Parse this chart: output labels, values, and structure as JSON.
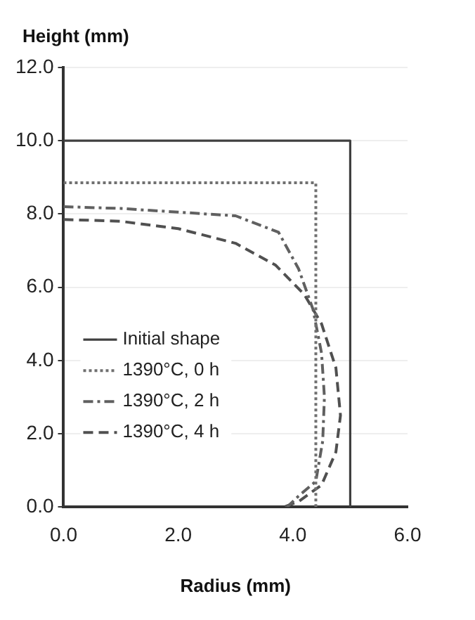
{
  "chart_data": {
    "type": "line",
    "xlabel": "Radius (mm)",
    "ylabel": "Height (mm)",
    "xlim": [
      0,
      6
    ],
    "ylim": [
      0,
      12
    ],
    "xticks": [
      {
        "value": 0,
        "label": "0.0"
      },
      {
        "value": 2,
        "label": "2.0"
      },
      {
        "value": 4,
        "label": "4.0"
      },
      {
        "value": 6,
        "label": "6.0"
      }
    ],
    "yticks": [
      {
        "value": 0,
        "label": "0.0"
      },
      {
        "value": 2,
        "label": "2.0"
      },
      {
        "value": 4,
        "label": "4.0"
      },
      {
        "value": 6,
        "label": "6.0"
      },
      {
        "value": 8,
        "label": "8.0"
      },
      {
        "value": 10,
        "label": "10.0"
      },
      {
        "value": 12,
        "label": "12.0"
      }
    ],
    "grid": "y",
    "legend": "bottom left",
    "marker": "none",
    "series": [
      {
        "name": "Initial shape",
        "color": "#404040",
        "line_style": "solid",
        "x": [
          0,
          5,
          5
        ],
        "values": [
          10,
          10,
          0
        ]
      },
      {
        "name": "1390°C, 0 h",
        "color": "#707070",
        "line_style": "dotted",
        "x": [
          0,
          4.4,
          4.4
        ],
        "values": [
          8.85,
          8.85,
          0
        ]
      },
      {
        "name": "1390°C, 2 h",
        "color": "#606060",
        "line_style": "dashdot",
        "x": [
          0,
          1,
          2,
          3,
          3.75,
          4.1,
          4.35,
          4.5,
          4.55,
          4.52,
          4.4,
          4.1,
          3.9
        ],
        "values": [
          8.2,
          8.15,
          8.05,
          7.95,
          7.5,
          6.5,
          5.4,
          4.2,
          3,
          1.8,
          0.7,
          0.3,
          0
        ]
      },
      {
        "name": "1390°C, 4 h",
        "color": "#505050",
        "line_style": "dashed",
        "x": [
          0,
          1,
          2,
          3,
          3.7,
          4.2,
          4.5,
          4.75,
          4.83,
          4.75,
          4.5,
          4.1,
          3.85
        ],
        "values": [
          7.85,
          7.8,
          7.6,
          7.2,
          6.6,
          5.8,
          5,
          3.8,
          2.5,
          1.5,
          0.6,
          0.15,
          0
        ]
      }
    ]
  }
}
